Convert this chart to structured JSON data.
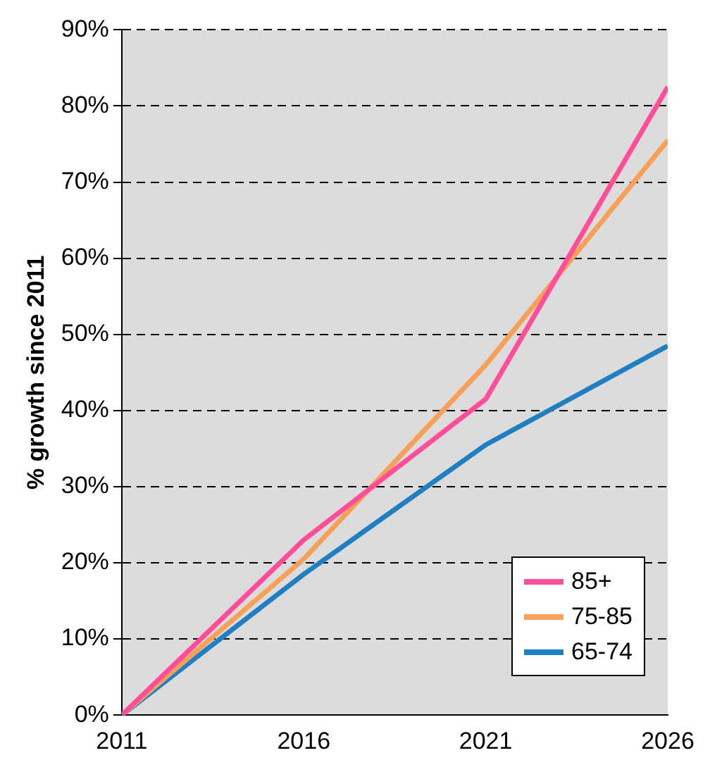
{
  "chart_data": {
    "type": "line",
    "ylabel": "% growth since 2011",
    "x": [
      2011,
      2016,
      2021,
      2026
    ],
    "series": [
      {
        "name": "85+",
        "color": "#ff4f9a",
        "values": [
          0,
          23,
          41.5,
          82.5
        ]
      },
      {
        "name": "75-85",
        "color": "#f7a05a",
        "values": [
          0,
          20.5,
          46,
          75.5
        ]
      },
      {
        "name": "65-74",
        "color": "#1f7fc0",
        "values": [
          0,
          18.5,
          35.5,
          48.5
        ]
      }
    ],
    "xlim": [
      2011,
      2026
    ],
    "xticks": [
      2011,
      2016,
      2021,
      2026
    ],
    "ylim": [
      0,
      90
    ],
    "yticks": [
      {
        "value": 0,
        "label": "0%"
      },
      {
        "value": 10,
        "label": "10%"
      },
      {
        "value": 20,
        "label": "20%"
      },
      {
        "value": 30,
        "label": "30%"
      },
      {
        "value": 40,
        "label": "40%"
      },
      {
        "value": 50,
        "label": "50%"
      },
      {
        "value": 60,
        "label": "60%"
      },
      {
        "value": 70,
        "label": "70%"
      },
      {
        "value": 80,
        "label": "80%"
      },
      {
        "value": 90,
        "label": "90%"
      }
    ],
    "grid": "y",
    "legend": "bottom right",
    "marker": "none",
    "line_style": "solid"
  }
}
